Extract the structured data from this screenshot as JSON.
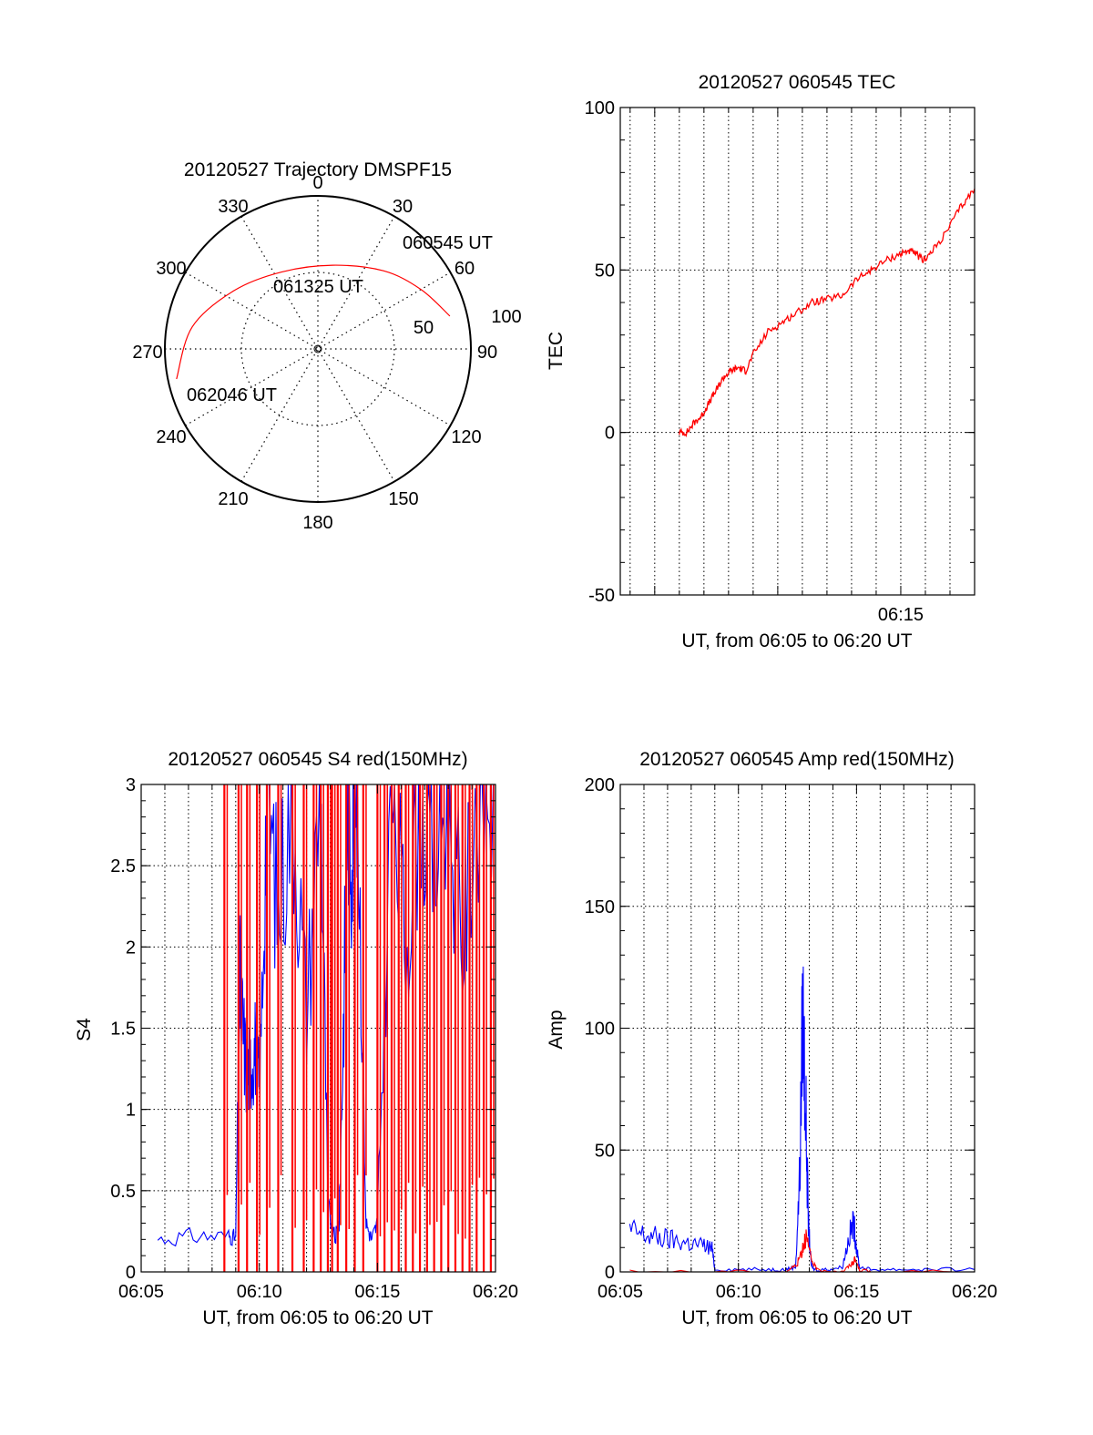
{
  "chart_data": [
    {
      "type": "polar",
      "title": "20120527 Trajectory DMSPF15",
      "angle_labels": [
        "0",
        "30",
        "60",
        "90",
        "120",
        "150",
        "180",
        "210",
        "240",
        "270",
        "300",
        "330"
      ],
      "radius_labels": [
        "50",
        "100"
      ],
      "series": [
        {
          "color": "#ff0000",
          "points": [
            {
              "azimuth_deg": 76,
              "elevation_deg": 10
            },
            {
              "azimuth_deg": 60,
              "elevation_deg": 20
            },
            {
              "azimuth_deg": 40,
              "elevation_deg": 30
            },
            {
              "azimuth_deg": 10,
              "elevation_deg": 40
            },
            {
              "azimuth_deg": 335,
              "elevation_deg": 40
            },
            {
              "azimuth_deg": 305,
              "elevation_deg": 30
            },
            {
              "azimuth_deg": 280,
              "elevation_deg": 15
            },
            {
              "azimuth_deg": 258,
              "elevation_deg": 5
            }
          ]
        }
      ],
      "annotations": [
        {
          "text": "060545 UT",
          "azimuth_deg": 68,
          "elevation_deg": 8
        },
        {
          "text": "061325 UT",
          "azimuth_deg": 340,
          "elevation_deg": 48
        },
        {
          "text": "062046 UT",
          "azimuth_deg": 231,
          "elevation_deg": 35
        }
      ]
    },
    {
      "type": "line",
      "title": "20120527 060545 TEC",
      "xlabel": "UT, from 06:05 to 06:20 UT",
      "ylabel": "TEC",
      "xlim": [
        6.06,
        6.3
      ],
      "ylim": [
        -50,
        100
      ],
      "x_tick_labels": [
        {
          "x": 6.25,
          "label": "06:15"
        }
      ],
      "y_ticks": [
        -50,
        0,
        50,
        100
      ],
      "grid": true,
      "series": [
        {
          "color": "#ff0000",
          "x": [
            6.1,
            6.105,
            6.11,
            6.115,
            6.12,
            6.125,
            6.13,
            6.135,
            6.14,
            6.145,
            6.15,
            6.16,
            6.17,
            6.18,
            6.19,
            6.2,
            6.21,
            6.22,
            6.23,
            6.24,
            6.25,
            6.255,
            6.26,
            6.265,
            6.27,
            6.28,
            6.29,
            6.3
          ],
          "y": [
            0,
            0,
            3,
            5,
            9,
            13,
            17,
            19,
            20,
            19,
            24,
            31,
            34,
            37,
            40,
            41,
            42,
            47,
            50,
            53,
            55,
            56,
            55,
            53,
            55,
            61,
            69,
            75
          ]
        }
      ]
    },
    {
      "type": "line",
      "title": "20120527 060545 S4 red(150MHz)",
      "xlabel": "UT, from 06:05 to 06:20 UT",
      "ylabel": "S4",
      "xlim": [
        6.0833,
        6.3333
      ],
      "ylim": [
        0,
        3
      ],
      "x_tick_labels": [
        {
          "x": 6.0833,
          "label": "06:05"
        },
        {
          "x": 6.1667,
          "label": "06:10"
        },
        {
          "x": 6.25,
          "label": "06:15"
        },
        {
          "x": 6.3333,
          "label": "06:20"
        }
      ],
      "y_ticks": [
        0,
        0.5,
        1,
        1.5,
        2,
        2.5,
        3
      ],
      "y_tick_labels": [
        "0",
        "0.5",
        "1",
        "1.5",
        "2",
        "2.5",
        "3"
      ],
      "grid": true,
      "series": [
        {
          "color": "#0000ff",
          "x": [
            6.095,
            6.12,
            6.145,
            6.15,
            6.153,
            6.155,
            6.158,
            6.161,
            6.164,
            6.167,
            6.172,
            6.18,
            6.19,
            6.2,
            6.21,
            6.215,
            6.22,
            6.223,
            6.226,
            6.229,
            6.232,
            6.236,
            6.242,
            6.246,
            6.25,
            6.26,
            6.27,
            6.28,
            6.29,
            6.3,
            6.31,
            6.32,
            6.333
          ],
          "y": [
            0.2,
            0.22,
            0.22,
            0.21,
            1.8,
            1.5,
            1.2,
            1.3,
            1.4,
            1.1,
            3.0,
            2.2,
            3.0,
            1.6,
            3.0,
            0.4,
            0.2,
            0.3,
            1.5,
            3.0,
            2.6,
            3.0,
            0.3,
            0.2,
            0.3,
            3.0,
            2.0,
            3.0,
            2.5,
            3.0,
            2.0,
            3.0,
            3.0
          ]
        },
        {
          "color": "#ff0000",
          "x": [
            6.142,
            6.152,
            6.158,
            6.165,
            6.172,
            6.18,
            6.19,
            6.198,
            6.205,
            6.21,
            6.215,
            6.218,
            6.222,
            6.228,
            6.234,
            6.24,
            6.25,
            6.255,
            6.26,
            6.265,
            6.27,
            6.275,
            6.28,
            6.285,
            6.29,
            6.295,
            6.3,
            6.305,
            6.31,
            6.315,
            6.32,
            6.325,
            6.33
          ],
          "y": [
            3.0,
            3.0,
            3.0,
            3.0,
            3.0,
            3.0,
            3.0,
            3.0,
            3.0,
            3.0,
            3.0,
            3.0,
            3.0,
            3.0,
            3.0,
            3.0,
            3.0,
            3.0,
            3.0,
            3.0,
            3.0,
            3.0,
            3.0,
            3.0,
            3.0,
            3.0,
            3.0,
            3.0,
            3.0,
            3.0,
            3.0,
            3.0,
            3.0
          ]
        }
      ]
    },
    {
      "type": "line",
      "title": "20120527 060545 Amp red(150MHz)",
      "xlabel": "UT, from 06:05 to 06:20 UT",
      "ylabel": "Amp",
      "xlim": [
        6.0833,
        6.3333
      ],
      "ylim": [
        0,
        200
      ],
      "x_tick_labels": [
        {
          "x": 6.0833,
          "label": "06:05"
        },
        {
          "x": 6.1667,
          "label": "06:10"
        },
        {
          "x": 6.25,
          "label": "06:15"
        },
        {
          "x": 6.3333,
          "label": "06:20"
        }
      ],
      "y_ticks": [
        0,
        50,
        100,
        150,
        200
      ],
      "grid": true,
      "series": [
        {
          "color": "#0000ff",
          "x": [
            6.09,
            6.1,
            6.11,
            6.12,
            6.13,
            6.14,
            6.148,
            6.15,
            6.17,
            6.19,
            6.2,
            6.207,
            6.21,
            6.212,
            6.214,
            6.216,
            6.218,
            6.22,
            6.23,
            6.24,
            6.245,
            6.248,
            6.25,
            6.252,
            6.26,
            6.28,
            6.3,
            6.333
          ],
          "y": [
            17,
            15,
            14,
            13,
            12,
            11,
            10,
            1,
            1,
            1,
            1,
            2,
            40,
            110,
            70,
            20,
            3,
            1,
            1,
            2,
            15,
            20,
            10,
            2,
            1,
            1,
            1,
            1
          ]
        },
        {
          "color": "#ff0000",
          "x": [
            6.09,
            6.15,
            6.2,
            6.208,
            6.212,
            6.214,
            6.218,
            6.222,
            6.24,
            6.246,
            6.249,
            6.252,
            6.26,
            6.333
          ],
          "y": [
            0,
            0,
            0,
            3,
            10,
            15,
            5,
            1,
            0,
            3,
            5,
            1,
            0,
            0
          ]
        }
      ]
    }
  ]
}
